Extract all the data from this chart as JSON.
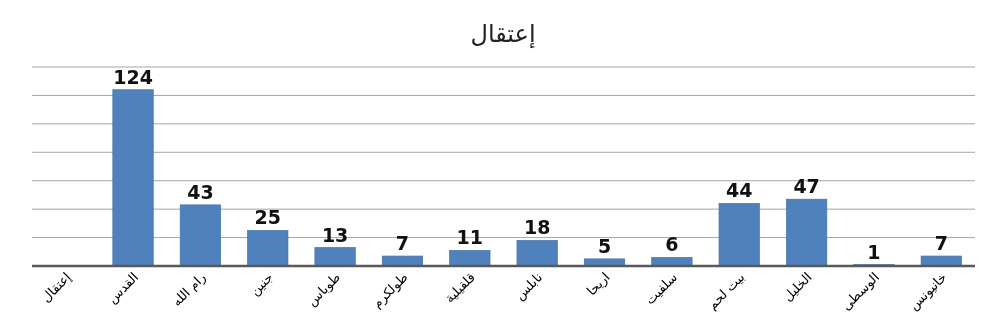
{
  "chart_data": {
    "type": "bar",
    "title": "إعتقال",
    "categories": [
      "إعتقال",
      "القدس",
      "رام الله",
      "جنين",
      "طوباس",
      "طولكرم",
      "قلقيلية",
      "نابلس",
      "اريحا",
      "سلفيت",
      "بيت لحم",
      "الخليل",
      "الوسطى",
      "خانيونس"
    ],
    "values": [
      null,
      124,
      43,
      25,
      13,
      7,
      11,
      18,
      5,
      6,
      44,
      47,
      1,
      7
    ],
    "color": "#4f81bd",
    "data_labels": true,
    "grid": "y",
    "tick_labels": "x",
    "ylim": [
      0,
      140
    ],
    "yticks": [
      {
        "value": 0,
        "label": null
      },
      {
        "value": 20,
        "label": null
      },
      {
        "value": 40,
        "label": null
      },
      {
        "value": 60,
        "label": null
      },
      {
        "value": 80,
        "label": null
      },
      {
        "value": 100,
        "label": null
      },
      {
        "value": 120,
        "label": null
      },
      {
        "value": 140,
        "label": null
      }
    ]
  }
}
